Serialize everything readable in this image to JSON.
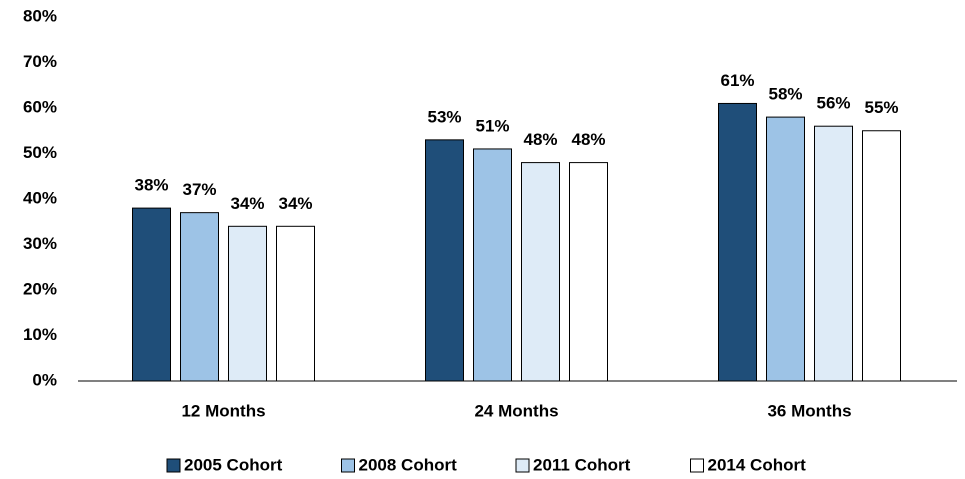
{
  "chart_data": {
    "type": "bar",
    "categories": [
      "12 Months",
      "24 Months",
      "36 Months"
    ],
    "series": [
      {
        "name": "2005 Cohort",
        "color": "#1f4e79",
        "values": [
          38,
          53,
          61
        ],
        "value_labels": [
          "38%",
          "53%",
          "61%"
        ]
      },
      {
        "name": "2008 Cohort",
        "color": "#9dc3e6",
        "values": [
          37,
          51,
          58
        ],
        "value_labels": [
          "37%",
          "51%",
          "58%"
        ]
      },
      {
        "name": "2011 Cohort",
        "color": "#deebf7",
        "values": [
          34,
          48,
          56
        ],
        "value_labels": [
          "34%",
          "48%",
          "56%"
        ]
      },
      {
        "name": "2014 Cohort",
        "color": "#ffffff",
        "values": [
          34,
          48,
          55
        ],
        "value_labels": [
          "34%",
          "48%",
          "55%"
        ]
      }
    ],
    "ylim": [
      0,
      80
    ],
    "yticks": [
      {
        "value": 0,
        "label": "0%"
      },
      {
        "value": 10,
        "label": "10%"
      },
      {
        "value": 20,
        "label": "20%"
      },
      {
        "value": 30,
        "label": "30%"
      },
      {
        "value": 40,
        "label": "40%"
      },
      {
        "value": 50,
        "label": "50%"
      },
      {
        "value": 60,
        "label": "60%"
      },
      {
        "value": 70,
        "label": "70%"
      },
      {
        "value": 80,
        "label": "80%"
      }
    ],
    "grid": false,
    "legend": "bottom"
  }
}
